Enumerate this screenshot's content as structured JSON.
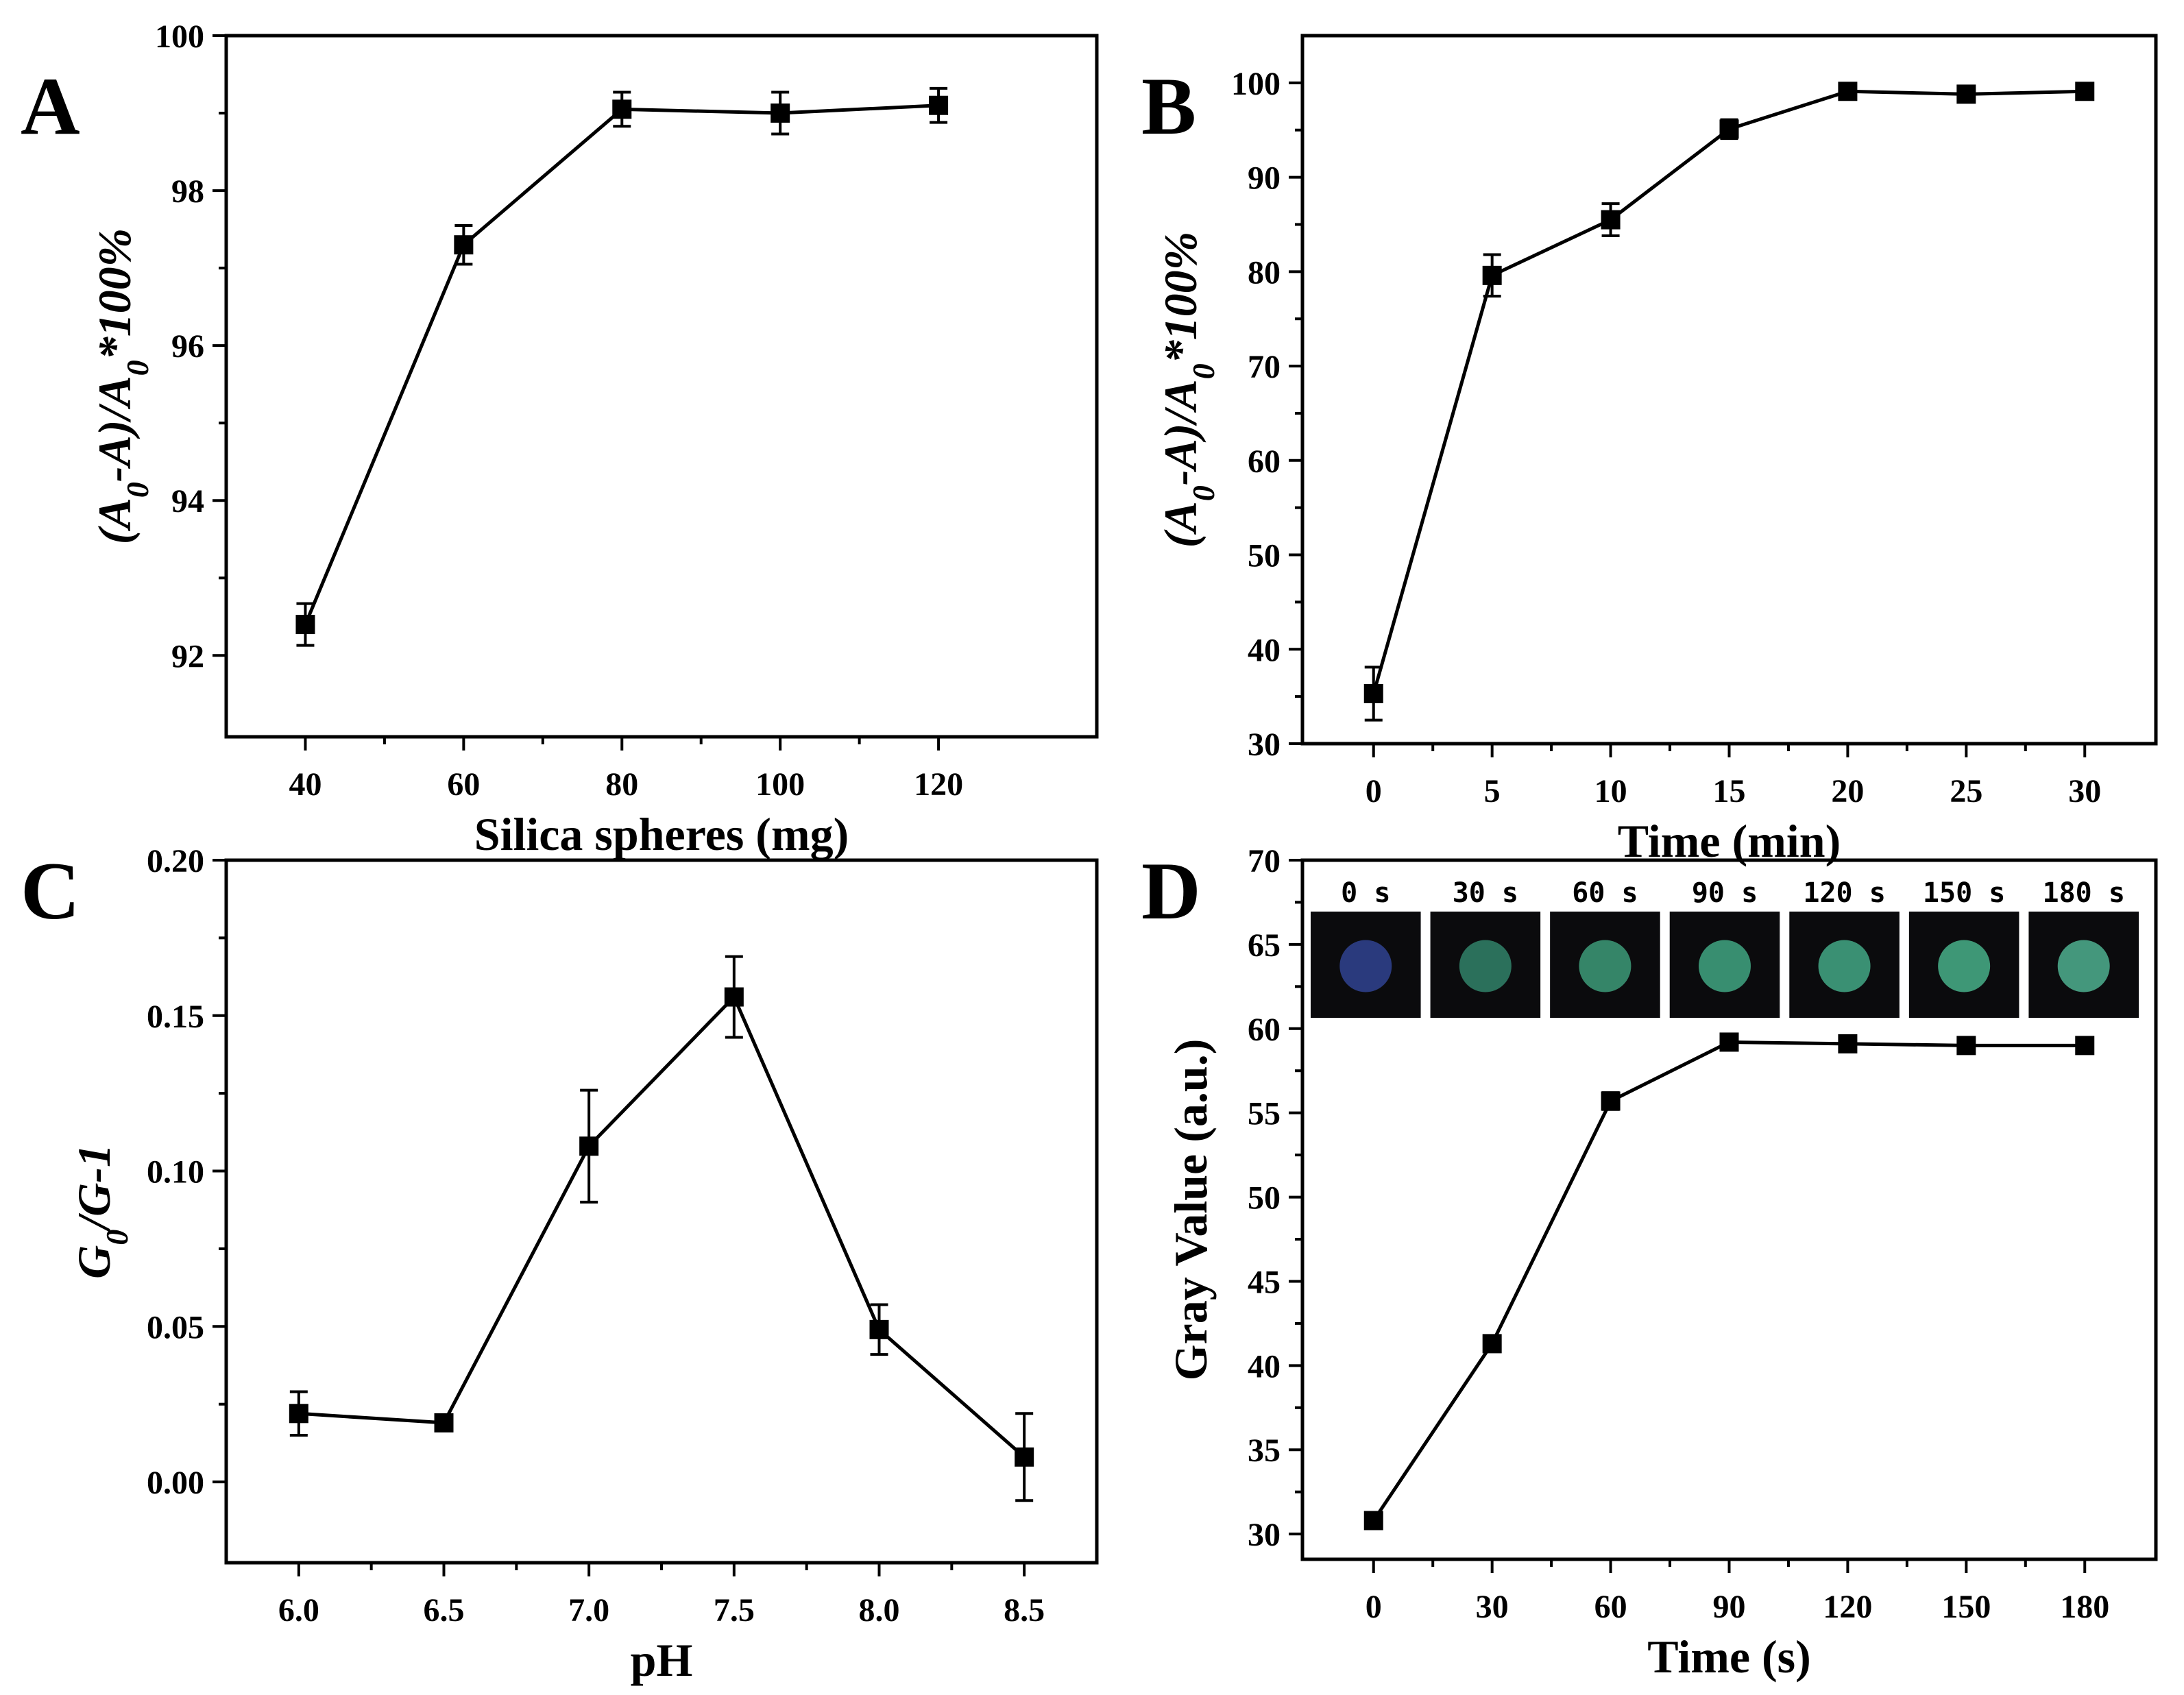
{
  "figure": {
    "panel_count": 4
  },
  "chart_data": [
    {
      "panel": "A",
      "type": "line",
      "xlabel": "Silica spheres (mg)",
      "ylabel_parts": [
        "(A",
        "0",
        "-A)/A",
        "0",
        "*100%"
      ],
      "xticks": [
        40,
        60,
        80,
        100,
        120
      ],
      "xtick_labels": [
        "40",
        "60",
        "80",
        "100",
        "120"
      ],
      "yticks": [
        92,
        94,
        96,
        98,
        100
      ],
      "ytick_labels": [
        "92",
        "94",
        "96",
        "98",
        "100"
      ],
      "xlim": [
        30,
        140
      ],
      "ylim": [
        90.95,
        100
      ],
      "series": [
        {
          "name": "A",
          "x": [
            40,
            60,
            80,
            100,
            120
          ],
          "y": [
            92.4,
            97.3,
            99.05,
            99.0,
            99.1
          ],
          "err": [
            0.27,
            0.25,
            0.22,
            0.27,
            0.22
          ]
        }
      ]
    },
    {
      "panel": "B",
      "type": "line",
      "xlabel": "Time (min)",
      "ylabel_parts": [
        "(A",
        "0",
        "-A)/A",
        "0",
        "*100%"
      ],
      "xticks": [
        0,
        5,
        10,
        15,
        20,
        25,
        30
      ],
      "xtick_labels": [
        "0",
        "5",
        "10",
        "15",
        "20",
        "25",
        "30"
      ],
      "yticks": [
        30,
        40,
        50,
        60,
        70,
        80,
        90,
        100
      ],
      "ytick_labels": [
        "30",
        "40",
        "50",
        "60",
        "70",
        "80",
        "90",
        "100"
      ],
      "xlim": [
        -3,
        33
      ],
      "ylim": [
        30,
        105
      ],
      "series": [
        {
          "name": "B",
          "x": [
            0,
            5,
            10,
            15,
            20,
            25,
            30
          ],
          "y": [
            35.3,
            79.6,
            85.5,
            95.1,
            99.1,
            98.8,
            99.1
          ],
          "err": [
            2.8,
            2.2,
            1.7,
            1.0,
            0.8,
            0.8,
            0.6
          ]
        }
      ]
    },
    {
      "panel": "C",
      "type": "line",
      "xlabel": "pH",
      "ylabel_parts": [
        "G",
        "0",
        "/G-1"
      ],
      "xticks": [
        6.0,
        6.5,
        7.0,
        7.5,
        8.0,
        8.5
      ],
      "xtick_labels": [
        "6.0",
        "6.5",
        "7.0",
        "7.5",
        "8.0",
        "8.5"
      ],
      "yticks": [
        0.0,
        0.05,
        0.1,
        0.15,
        0.2
      ],
      "ytick_labels": [
        "0.00",
        "0.05",
        "0.10",
        "0.15",
        "0.20"
      ],
      "xlim": [
        5.75,
        8.75
      ],
      "ylim": [
        -0.026,
        0.2
      ],
      "series": [
        {
          "name": "C",
          "x": [
            6.0,
            6.5,
            7.0,
            7.5,
            8.0,
            8.5
          ],
          "y": [
            0.022,
            0.019,
            0.108,
            0.156,
            0.049,
            0.008
          ],
          "err": [
            0.007,
            0.002,
            0.018,
            0.013,
            0.008,
            0.014
          ]
        }
      ]
    },
    {
      "panel": "D",
      "type": "line",
      "xlabel": "Time (s)",
      "ylabel_parts": [
        "Gray Value (a.u.)"
      ],
      "xticks": [
        0,
        30,
        60,
        90,
        120,
        150,
        180
      ],
      "xtick_labels": [
        "0",
        "30",
        "60",
        "90",
        "120",
        "150",
        "180"
      ],
      "yticks": [
        30,
        35,
        40,
        45,
        50,
        55,
        60,
        65,
        70
      ],
      "ytick_labels": [
        "30",
        "35",
        "40",
        "45",
        "50",
        "55",
        "60",
        "65",
        "70"
      ],
      "xlim": [
        -18,
        198
      ],
      "ylim": [
        28.5,
        70
      ],
      "series": [
        {
          "name": "D",
          "x": [
            0,
            30,
            60,
            90,
            120,
            150,
            180
          ],
          "y": [
            30.8,
            41.3,
            55.7,
            59.2,
            59.1,
            59.0,
            59.0
          ],
          "err": [
            0.3,
            0.4,
            0.5,
            0.3,
            0.3,
            0.4,
            0.3
          ]
        }
      ],
      "inset_images": [
        {
          "label": "0 s",
          "spot_color": "#2e3f87"
        },
        {
          "label": "30 s",
          "spot_color": "#2f7a62"
        },
        {
          "label": "60 s",
          "spot_color": "#3a9070"
        },
        {
          "label": "90 s",
          "spot_color": "#3d9a78"
        },
        {
          "label": "120 s",
          "spot_color": "#3f9c7c"
        },
        {
          "label": "150 s",
          "spot_color": "#43a47f"
        },
        {
          "label": "180 s",
          "spot_color": "#4aa485"
        }
      ]
    }
  ],
  "panel_letters": [
    "A",
    "B",
    "C",
    "D"
  ],
  "colors": {
    "line": "#000000",
    "marker": "#000000",
    "inset_background": "#0b0b0d",
    "background": "#ffffff"
  }
}
